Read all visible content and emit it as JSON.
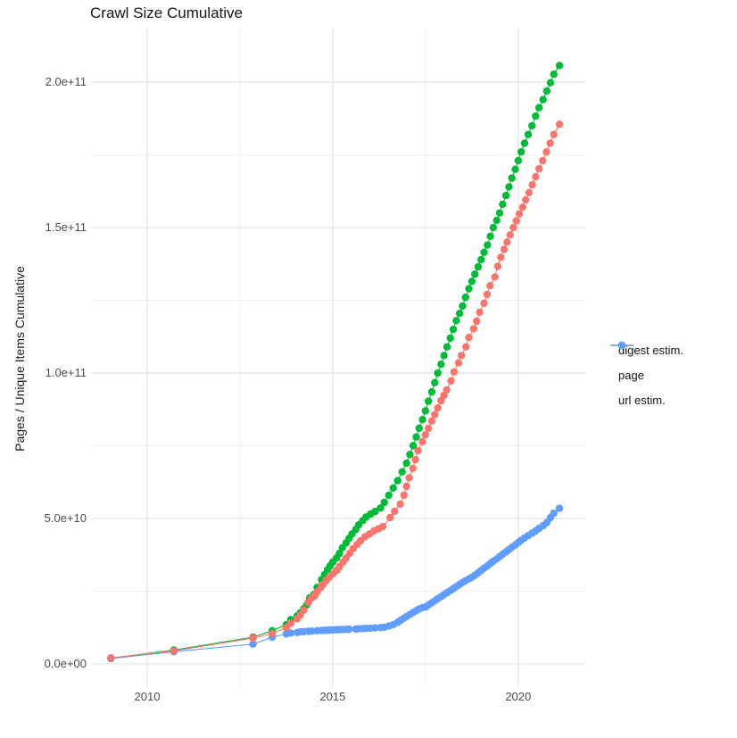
{
  "title": "Crawl Size Cumulative",
  "chart_data": {
    "type": "scatter",
    "title": "Crawl Size Cumulative",
    "xlabel": "",
    "ylabel": "Pages / Unique Items Cumulative",
    "grid": true,
    "legend_position": "right",
    "x_range": [
      2008.5,
      2021.85
    ],
    "y_range_e9": [
      -8,
      218
    ],
    "x_ticks": [
      2010,
      2015,
      2020
    ],
    "x_tick_labels": [
      "2010",
      "2015",
      "2020"
    ],
    "x_minor_ticks": [
      2012.5,
      2017.5
    ],
    "y_ticks_e9": [
      0,
      50,
      100,
      150,
      200
    ],
    "y_tick_labels": [
      "0.0e+00",
      "5.0e+10",
      "1.0e+11",
      "1.5e+11",
      "2.0e+11"
    ],
    "y_minor_ticks_e9": [
      25,
      75,
      125,
      175
    ],
    "value_unit": "pages, values in billions (1e9)",
    "major_grid_color": "#e3e3e3",
    "minor_grid_color": "#f0f0f0",
    "series": [
      {
        "name": "digest estim.",
        "color": "#F8766D",
        "points": [
          [
            2009.02,
            2.1
          ],
          [
            2010.72,
            4.5
          ],
          [
            2012.85,
            8.9
          ],
          [
            2013.37,
            10.4
          ],
          [
            2013.75,
            12.5
          ],
          [
            2013.87,
            14.0
          ],
          [
            2014.04,
            15.5
          ],
          [
            2014.13,
            16.8
          ],
          [
            2014.22,
            18.5
          ],
          [
            2014.34,
            21.2
          ],
          [
            2014.44,
            22.7
          ],
          [
            2014.52,
            23.5
          ],
          [
            2014.58,
            24.8
          ],
          [
            2014.68,
            26.3
          ],
          [
            2014.74,
            27.3
          ],
          [
            2014.82,
            28.6
          ],
          [
            2014.9,
            29.7
          ],
          [
            2015.0,
            30.9
          ],
          [
            2015.1,
            32.1
          ],
          [
            2015.18,
            33.4
          ],
          [
            2015.28,
            35.0
          ],
          [
            2015.36,
            36.4
          ],
          [
            2015.46,
            38.0
          ],
          [
            2015.55,
            39.6
          ],
          [
            2015.66,
            41.1
          ],
          [
            2015.75,
            42.3
          ],
          [
            2015.87,
            43.7
          ],
          [
            2015.99,
            44.7
          ],
          [
            2016.11,
            45.7
          ],
          [
            2016.23,
            46.4
          ],
          [
            2016.35,
            47.2
          ],
          [
            2016.55,
            50.3
          ],
          [
            2016.67,
            52.5
          ],
          [
            2016.82,
            54.9
          ],
          [
            2016.92,
            58.0
          ],
          [
            2016.99,
            61.0
          ],
          [
            2017.06,
            64.0
          ],
          [
            2017.16,
            67.2
          ],
          [
            2017.23,
            70.2
          ],
          [
            2017.3,
            73.3
          ],
          [
            2017.42,
            76.4
          ],
          [
            2017.5,
            78.8
          ],
          [
            2017.58,
            81.0
          ],
          [
            2017.67,
            83.5
          ],
          [
            2017.75,
            85.7
          ],
          [
            2017.83,
            88.0
          ],
          [
            2017.92,
            90.5
          ],
          [
            2018.0,
            92.3
          ],
          [
            2018.07,
            94.2
          ],
          [
            2018.19,
            97.3
          ],
          [
            2018.27,
            100.4
          ],
          [
            2018.39,
            103.5
          ],
          [
            2018.47,
            106.0
          ],
          [
            2018.59,
            109.0
          ],
          [
            2018.67,
            112.2
          ],
          [
            2018.8,
            115.2
          ],
          [
            2018.88,
            117.8
          ],
          [
            2018.96,
            120.9
          ],
          [
            2019.08,
            124.0
          ],
          [
            2019.16,
            127.0
          ],
          [
            2019.24,
            130.0
          ],
          [
            2019.37,
            133.0
          ],
          [
            2019.45,
            136.7
          ],
          [
            2019.53,
            139.8
          ],
          [
            2019.62,
            142.5
          ],
          [
            2019.7,
            145.0
          ],
          [
            2019.78,
            147.5
          ],
          [
            2019.87,
            150.0
          ],
          [
            2019.95,
            152.3
          ],
          [
            2020.03,
            154.7
          ],
          [
            2020.12,
            157.0
          ],
          [
            2020.2,
            159.5
          ],
          [
            2020.29,
            162.0
          ],
          [
            2020.38,
            164.7
          ],
          [
            2020.47,
            167.5
          ],
          [
            2020.56,
            170.2
          ],
          [
            2020.66,
            173.0
          ],
          [
            2020.76,
            176.0
          ],
          [
            2020.86,
            179.0
          ],
          [
            2020.96,
            182.0
          ],
          [
            2021.11,
            185.5
          ]
        ]
      },
      {
        "name": "page",
        "color": "#00BA38",
        "points": [
          [
            2009.02,
            2.0
          ],
          [
            2010.72,
            4.8
          ],
          [
            2012.85,
            9.2
          ],
          [
            2013.37,
            11.4
          ],
          [
            2013.75,
            13.5
          ],
          [
            2013.87,
            15.2
          ],
          [
            2014.04,
            16.5
          ],
          [
            2014.13,
            17.6
          ],
          [
            2014.22,
            19.0
          ],
          [
            2014.3,
            20.3
          ],
          [
            2014.38,
            22.7
          ],
          [
            2014.5,
            23.9
          ],
          [
            2014.58,
            26.3
          ],
          [
            2014.7,
            29.0
          ],
          [
            2014.78,
            30.7
          ],
          [
            2014.86,
            32.4
          ],
          [
            2014.93,
            33.7
          ],
          [
            2015.0,
            35.0
          ],
          [
            2015.1,
            36.4
          ],
          [
            2015.18,
            38.0
          ],
          [
            2015.26,
            39.9
          ],
          [
            2015.36,
            41.6
          ],
          [
            2015.44,
            43.2
          ],
          [
            2015.52,
            44.7
          ],
          [
            2015.62,
            46.2
          ],
          [
            2015.7,
            47.8
          ],
          [
            2015.81,
            49.3
          ],
          [
            2015.9,
            50.5
          ],
          [
            2016.02,
            51.5
          ],
          [
            2016.14,
            52.4
          ],
          [
            2016.29,
            53.6
          ],
          [
            2016.39,
            55.5
          ],
          [
            2016.51,
            58.0
          ],
          [
            2016.63,
            60.5
          ],
          [
            2016.75,
            63.0
          ],
          [
            2016.87,
            66.0
          ],
          [
            2016.99,
            69.0
          ],
          [
            2017.08,
            72.0
          ],
          [
            2017.17,
            75.0
          ],
          [
            2017.25,
            78.0
          ],
          [
            2017.33,
            81.0
          ],
          [
            2017.42,
            84.0
          ],
          [
            2017.5,
            87.0
          ],
          [
            2017.58,
            90.3
          ],
          [
            2017.67,
            93.5
          ],
          [
            2017.75,
            96.7
          ],
          [
            2017.83,
            100.0
          ],
          [
            2017.92,
            103.0
          ],
          [
            2018.0,
            106.0
          ],
          [
            2018.08,
            109.0
          ],
          [
            2018.17,
            112.0
          ],
          [
            2018.25,
            115.0
          ],
          [
            2018.33,
            118.0
          ],
          [
            2018.42,
            120.5
          ],
          [
            2018.5,
            123.0
          ],
          [
            2018.58,
            126.0
          ],
          [
            2018.67,
            129.0
          ],
          [
            2018.75,
            131.5
          ],
          [
            2018.83,
            134.0
          ],
          [
            2018.92,
            136.5
          ],
          [
            2019.0,
            139.0
          ],
          [
            2019.08,
            141.5
          ],
          [
            2019.17,
            144.0
          ],
          [
            2019.25,
            147.0
          ],
          [
            2019.33,
            150.0
          ],
          [
            2019.42,
            152.5
          ],
          [
            2019.5,
            155.0
          ],
          [
            2019.58,
            158.0
          ],
          [
            2019.67,
            161.0
          ],
          [
            2019.75,
            164.0
          ],
          [
            2019.83,
            167.0
          ],
          [
            2019.92,
            170.0
          ],
          [
            2020.0,
            173.0
          ],
          [
            2020.08,
            176.0
          ],
          [
            2020.17,
            179.0
          ],
          [
            2020.27,
            182.0
          ],
          [
            2020.37,
            185.0
          ],
          [
            2020.47,
            188.3
          ],
          [
            2020.56,
            191.2
          ],
          [
            2020.67,
            194.0
          ],
          [
            2020.77,
            196.9
          ],
          [
            2020.87,
            199.8
          ],
          [
            2020.96,
            202.7
          ],
          [
            2021.11,
            205.7
          ]
        ]
      },
      {
        "name": "url estim.",
        "color": "#619CFF",
        "points": [
          [
            2009.02,
            1.85
          ],
          [
            2010.72,
            4.2
          ],
          [
            2012.85,
            6.8
          ],
          [
            2013.37,
            9.2
          ],
          [
            2013.75,
            10.3
          ],
          [
            2013.87,
            10.6
          ],
          [
            2014.04,
            10.8
          ],
          [
            2014.13,
            11.0
          ],
          [
            2014.22,
            11.1
          ],
          [
            2014.34,
            11.2
          ],
          [
            2014.44,
            11.3
          ],
          [
            2014.58,
            11.4
          ],
          [
            2014.7,
            11.5
          ],
          [
            2014.78,
            11.55
          ],
          [
            2014.86,
            11.6
          ],
          [
            2014.93,
            11.65
          ],
          [
            2015.0,
            11.7
          ],
          [
            2015.1,
            11.75
          ],
          [
            2015.18,
            11.8
          ],
          [
            2015.26,
            11.85
          ],
          [
            2015.36,
            11.9
          ],
          [
            2015.44,
            11.95
          ],
          [
            2015.62,
            12.0
          ],
          [
            2015.7,
            12.1
          ],
          [
            2015.81,
            12.15
          ],
          [
            2015.9,
            12.2
          ],
          [
            2016.02,
            12.3
          ],
          [
            2016.14,
            12.4
          ],
          [
            2016.29,
            12.5
          ],
          [
            2016.39,
            12.6
          ],
          [
            2016.51,
            13.0
          ],
          [
            2016.63,
            13.5
          ],
          [
            2016.75,
            14.3
          ],
          [
            2016.83,
            15.0
          ],
          [
            2016.92,
            15.7
          ],
          [
            2016.99,
            16.3
          ],
          [
            2017.08,
            17.0
          ],
          [
            2017.17,
            17.7
          ],
          [
            2017.25,
            18.3
          ],
          [
            2017.33,
            18.9
          ],
          [
            2017.42,
            19.4
          ],
          [
            2017.51,
            19.6
          ],
          [
            2017.58,
            20.3
          ],
          [
            2017.67,
            21.0
          ],
          [
            2017.75,
            21.7
          ],
          [
            2017.83,
            22.4
          ],
          [
            2017.92,
            23.1
          ],
          [
            2018.0,
            23.8
          ],
          [
            2018.08,
            24.5
          ],
          [
            2018.17,
            25.2
          ],
          [
            2018.25,
            25.9
          ],
          [
            2018.33,
            26.6
          ],
          [
            2018.42,
            27.3
          ],
          [
            2018.5,
            28.0
          ],
          [
            2018.58,
            28.6
          ],
          [
            2018.67,
            29.2
          ],
          [
            2018.75,
            29.8
          ],
          [
            2018.83,
            30.5
          ],
          [
            2018.92,
            31.3
          ],
          [
            2019.0,
            32.1
          ],
          [
            2019.08,
            32.9
          ],
          [
            2019.17,
            33.7
          ],
          [
            2019.25,
            34.5
          ],
          [
            2019.33,
            35.3
          ],
          [
            2019.42,
            36.1
          ],
          [
            2019.5,
            36.9
          ],
          [
            2019.58,
            37.7
          ],
          [
            2019.67,
            38.5
          ],
          [
            2019.75,
            39.3
          ],
          [
            2019.83,
            40.1
          ],
          [
            2019.92,
            40.9
          ],
          [
            2020.0,
            41.7
          ],
          [
            2020.08,
            42.5
          ],
          [
            2020.17,
            43.3
          ],
          [
            2020.27,
            44.1
          ],
          [
            2020.37,
            44.9
          ],
          [
            2020.47,
            45.7
          ],
          [
            2020.56,
            46.6
          ],
          [
            2020.67,
            47.5
          ],
          [
            2020.77,
            48.6
          ],
          [
            2020.87,
            50.3
          ],
          [
            2020.96,
            51.8
          ],
          [
            2021.11,
            53.5
          ]
        ]
      }
    ]
  }
}
